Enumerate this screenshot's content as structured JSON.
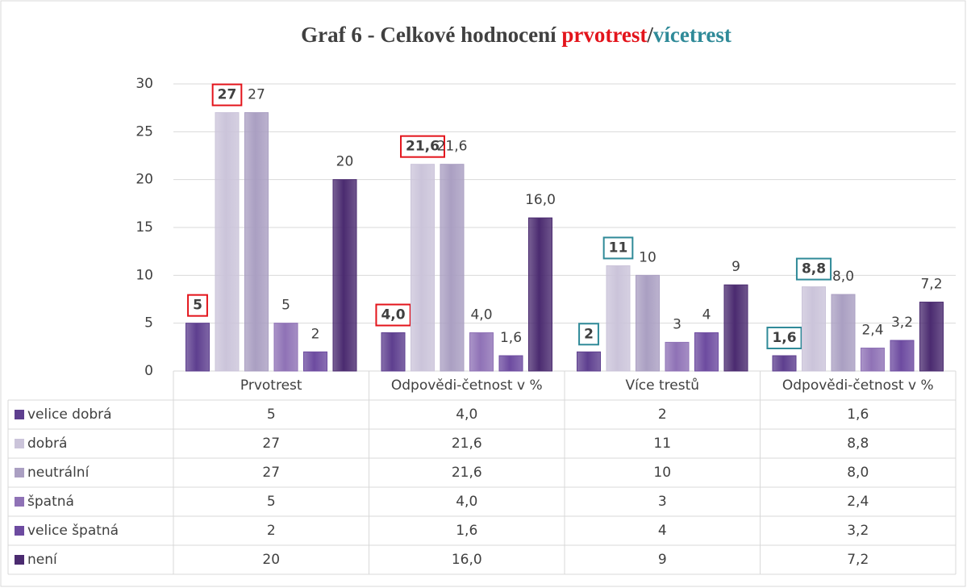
{
  "chart_data": {
    "type": "bar",
    "title": [
      "Graf 6 - Celkové hodnocení ",
      "prvotrest",
      "/",
      "vícetrest"
    ],
    "title_colors": [
      "#404040",
      "#e3141b",
      "#404040",
      "#2f8a98"
    ],
    "categories": [
      "Prvotrest",
      "Odpovědi-četnost v %",
      "Více trestů",
      "Odpovědi-četnost v %"
    ],
    "ylim": [
      0,
      30
    ],
    "yticks": [
      0,
      5,
      10,
      15,
      20,
      25,
      30
    ],
    "grid": true,
    "boxed_series": [
      0,
      1
    ],
    "label_box_colors": [
      "#e3141b",
      "#e3141b",
      "#2f8a98",
      "#2f8a98"
    ],
    "series": [
      {
        "name": "velice dobrá",
        "color": "#5e3f8f",
        "values": [
          5,
          4.0,
          2,
          1.6
        ],
        "value_labels": [
          "5",
          "4,0",
          "2",
          "1,6"
        ]
      },
      {
        "name": "dobrá",
        "color": "#cbc4da",
        "values": [
          27,
          21.6,
          11,
          8.8
        ],
        "value_labels": [
          "27",
          "21,6",
          "11",
          "8,8"
        ]
      },
      {
        "name": "neutrální",
        "color": "#aa9fc2",
        "values": [
          27,
          21.6,
          10,
          8.0
        ],
        "value_labels": [
          "27",
          "21,6",
          "10",
          "8,0"
        ]
      },
      {
        "name": "špatná",
        "color": "#8f72b6",
        "values": [
          5,
          4.0,
          3,
          2.4
        ],
        "value_labels": [
          "5",
          "4,0",
          "3",
          "2,4"
        ]
      },
      {
        "name": "velice špatná",
        "color": "#6d4ba0",
        "values": [
          2,
          1.6,
          4,
          3.2
        ],
        "value_labels": [
          "2",
          "1,6",
          "4",
          "3,2"
        ]
      },
      {
        "name": "není",
        "color": "#4b2b70",
        "values": [
          20,
          16.0,
          9,
          7.2
        ],
        "value_labels": [
          "20",
          "16,0",
          "9",
          "7,2"
        ]
      }
    ]
  }
}
